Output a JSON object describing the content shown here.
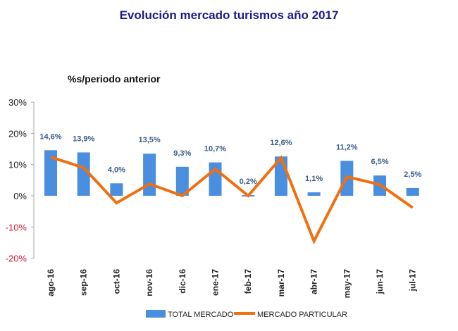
{
  "chart_data": {
    "type": "bar+line",
    "title": "Evolución mercado turismos año 2017",
    "subtitle": "%s/periodo anterior",
    "categories": [
      "ago-16",
      "sep-16",
      "oct-16",
      "nov-16",
      "dic-16",
      "ene-17",
      "feb-17",
      "mar-17",
      "abr-17",
      "may-17",
      "jun-17",
      "jul-17"
    ],
    "series": [
      {
        "name": "TOTAL MERCADO",
        "type": "bar",
        "color": "#4a8ee0",
        "values": [
          14.6,
          13.9,
          4.0,
          13.5,
          9.3,
          10.7,
          0.2,
          12.6,
          1.1,
          11.2,
          6.5,
          2.5
        ],
        "labels": [
          "14,6%",
          "13,9%",
          "4,0%",
          "13,5%",
          "9,3%",
          "10,7%",
          "0,2%",
          "12,6%",
          "1,1%",
          "11,2%",
          "6,5%",
          "2,5%"
        ]
      },
      {
        "name": "MERCADO PARTICULAR",
        "type": "line",
        "color": "#f07010",
        "values": [
          12.4,
          9.0,
          -2.3,
          3.8,
          0.0,
          8.6,
          0.0,
          12.2,
          -14.5,
          6.1,
          3.6,
          -3.8
        ]
      }
    ],
    "yticks": [
      "30%",
      "20%",
      "10%",
      "0%",
      "-10%",
      "-20%"
    ],
    "ytick_values": [
      30,
      20,
      10,
      0,
      -10,
      -20
    ],
    "ylim": [
      -20,
      30
    ],
    "grid": false,
    "legend_position": "bottom"
  }
}
